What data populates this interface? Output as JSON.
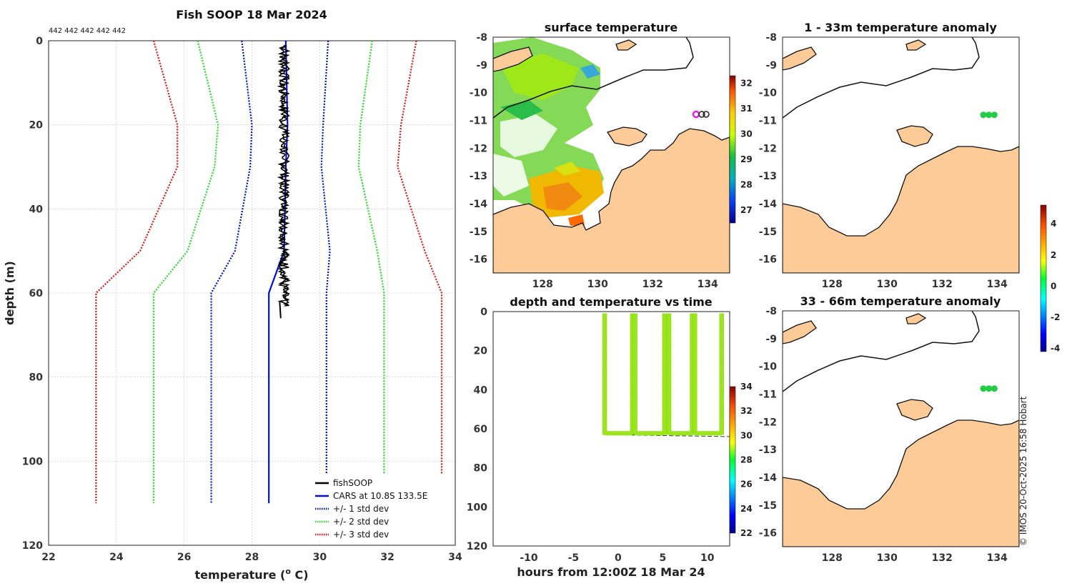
{
  "chart_data": [
    {
      "id": "profile",
      "type": "line",
      "title": "Fish SOOP 18 Mar 2024",
      "counts_label": "442 442 442 442 442",
      "xlabel": "temperature (",
      "xlabel_sup": "o",
      "xlabel_end": " C)",
      "ylabel": "depth (m)",
      "xlim": [
        22,
        34
      ],
      "ylim": [
        0,
        120
      ],
      "xticks": [
        22,
        24,
        26,
        28,
        30,
        32,
        34
      ],
      "yticks": [
        0,
        20,
        40,
        60,
        80,
        100,
        120
      ],
      "fishsoop": {
        "name": "fishSOOP",
        "color": "#000000",
        "temp_range": [
          28.8,
          29.1
        ],
        "depth_range": [
          1,
          66
        ]
      },
      "series": [
        {
          "name": "CARS at 10.8S 133.5E",
          "color": "#0010d8",
          "style": "solid",
          "x": [
            29.0,
            29.05,
            29.0,
            28.95,
            28.5,
            28.5
          ],
          "y": [
            0,
            20,
            30,
            50,
            60,
            110
          ]
        },
        {
          "name": "+/- 1 std dev",
          "color": "#0010d8",
          "style": "dotted",
          "x": [
            27.7,
            28.0,
            27.95,
            27.5,
            26.8,
            26.8
          ],
          "y": [
            0,
            20,
            30,
            50,
            60,
            110
          ],
          "x2": [
            30.25,
            30.1,
            30.05,
            30.3,
            30.2,
            30.2
          ],
          "y2": [
            0,
            20,
            30,
            50,
            60,
            110
          ]
        },
        {
          "name": "+/- 2 std dev",
          "color": "#22dd22",
          "style": "dotted",
          "x": [
            26.4,
            27.0,
            26.9,
            26.1,
            25.1,
            25.1
          ],
          "y": [
            0,
            20,
            30,
            50,
            60,
            110
          ],
          "x2": [
            31.55,
            31.2,
            31.15,
            31.7,
            31.9,
            31.9
          ],
          "y2": [
            0,
            20,
            30,
            50,
            60,
            110
          ]
        },
        {
          "name": "+/- 3 std dev",
          "color": "#ee1111",
          "style": "dotted",
          "x": [
            25.1,
            25.8,
            25.8,
            24.7,
            23.4,
            23.4
          ],
          "y": [
            0,
            20,
            30,
            50,
            60,
            110
          ],
          "x2": [
            32.85,
            32.4,
            32.3,
            33.1,
            33.6,
            33.6
          ],
          "y2": [
            0,
            20,
            30,
            50,
            60,
            110
          ]
        }
      ]
    },
    {
      "id": "sst",
      "type": "heatmap",
      "title": "surface temperature",
      "xticks": [
        128,
        130,
        132,
        134
      ],
      "yticks": [
        -8,
        -9,
        -10,
        -11,
        -12,
        -13,
        -14,
        -15,
        -16
      ],
      "xlim": [
        126.2,
        134.8
      ],
      "ylim": [
        -16.5,
        -8
      ],
      "colorbar": {
        "min": 26.5,
        "max": 32.3,
        "ticks": [
          27,
          28,
          29,
          30,
          31,
          32
        ]
      }
    },
    {
      "id": "time",
      "type": "scatter",
      "title": "depth and temperature vs time",
      "xlabel": "hours from 12:00Z 18 Mar 24",
      "xlim": [
        -14,
        12.5
      ],
      "ylim": [
        0,
        120
      ],
      "xticks": [
        -10,
        -5,
        0,
        5,
        10
      ],
      "yticks": [
        0,
        20,
        40,
        60,
        80,
        100,
        120
      ],
      "dives": [
        {
          "start": -1.5,
          "end": 1.6
        },
        {
          "start": 1.9,
          "end": 5.2
        },
        {
          "start": 5.7,
          "end": 8.3
        },
        {
          "start": 8.6,
          "end": 11.6
        }
      ],
      "point_color": "#9ae619",
      "bottom_depth": 63,
      "colorbar": {
        "min": 22,
        "max": 34,
        "ticks": [
          22,
          24,
          26,
          28,
          30,
          32,
          34
        ]
      }
    },
    {
      "id": "anom1",
      "type": "scatter",
      "title": "1 - 33m temperature anomaly",
      "xticks": [
        128,
        130,
        132,
        134
      ],
      "yticks": [
        -8,
        -9,
        -10,
        -11,
        -12,
        -13,
        -14,
        -15,
        -16
      ],
      "xlim": [
        126.2,
        134.8
      ],
      "ylim": [
        -16.5,
        -8
      ],
      "points": [
        {
          "lon": 133.5,
          "lat": -10.8
        },
        {
          "lon": 133.7,
          "lat": -10.8
        },
        {
          "lon": 133.9,
          "lat": -10.8
        }
      ],
      "point_color": "#22cc44"
    },
    {
      "id": "anom2",
      "type": "scatter",
      "title": "33 - 66m temperature anomaly",
      "xticks": [
        128,
        130,
        132,
        134
      ],
      "yticks": [
        -8,
        -9,
        -10,
        -11,
        -12,
        -13,
        -14,
        -15,
        -16
      ],
      "xlim": [
        126.2,
        134.8
      ],
      "ylim": [
        -16.5,
        -8
      ],
      "points": [
        {
          "lon": 133.5,
          "lat": -10.8
        },
        {
          "lon": 133.7,
          "lat": -10.8
        },
        {
          "lon": 133.9,
          "lat": -10.8
        }
      ],
      "point_color": "#22cc44"
    },
    {
      "id": "anom_colorbar",
      "type": "heatmap",
      "min": -4.2,
      "max": 5.2,
      "ticks": [
        4,
        2,
        0,
        -2,
        -4
      ]
    }
  ],
  "credit": "© IMOS 20-Oct-2025 16:58 Hobart",
  "colors": {
    "land": "#fccb97",
    "profile_black": "#000000"
  }
}
